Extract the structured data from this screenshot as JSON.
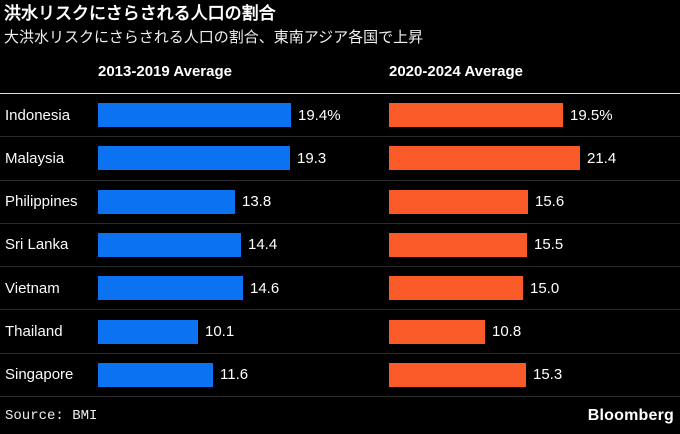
{
  "title": "洪水リスクにさらされる人口の割合",
  "subtitle": "大洪水リスクにさらされる人口の割合、東南アジア各国で上昇",
  "footer": {
    "source": "Source: BMI",
    "brand": "Bloomberg"
  },
  "colors": {
    "background": "#000000",
    "bar_blue": "#0b72f2",
    "bar_orange": "#f95a28",
    "header_rule": "#d9d9d9",
    "row_divider": "#2b2b2b",
    "text": "#ffffff"
  },
  "chart_data": {
    "type": "bar",
    "orientation": "horizontal",
    "grid": false,
    "legend_position": "column-headers",
    "categories": [
      "Indonesia",
      "Malaysia",
      "Philippines",
      "Sri Lanka",
      "Vietnam",
      "Thailand",
      "Singapore"
    ],
    "series": [
      {
        "name": "2013-2019 Average",
        "color_key": "bar_blue",
        "values": [
          19.4,
          19.3,
          13.8,
          14.4,
          14.6,
          10.1,
          11.6
        ],
        "labels": [
          "19.4%",
          "19.3",
          "13.8",
          "14.4",
          "14.6",
          "10.1",
          "11.6"
        ],
        "axis_max": 19.4
      },
      {
        "name": "2020-2024 Average",
        "color_key": "bar_orange",
        "values": [
          19.5,
          21.4,
          15.6,
          15.5,
          15.0,
          10.8,
          15.3
        ],
        "labels": [
          "19.5%",
          "21.4",
          "15.6",
          "15.5",
          "15.0",
          "10.8",
          "15.3"
        ],
        "axis_max": 21.4
      }
    ],
    "value_unit": "% of population exposed to flood risk"
  }
}
